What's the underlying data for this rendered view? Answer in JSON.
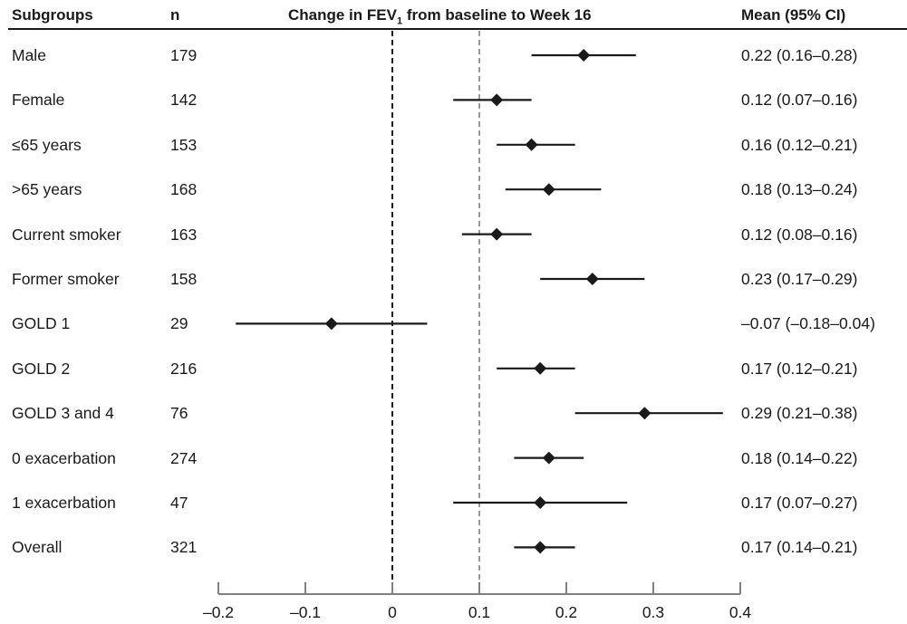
{
  "chart_data": {
    "type": "forest",
    "headers": {
      "subgroups": "Subgroups",
      "n": "n",
      "title_pre": "Change in FEV",
      "title_sub": "1",
      "title_post": " from baseline to Week 16",
      "ci": "Mean (95% CI)"
    },
    "rows": [
      {
        "label": "Male",
        "n": "179",
        "mean": 0.22,
        "lower": 0.16,
        "upper": 0.28,
        "ci_text": "0.22 (0.16–0.28)"
      },
      {
        "label": "Female",
        "n": "142",
        "mean": 0.12,
        "lower": 0.07,
        "upper": 0.16,
        "ci_text": "0.12 (0.07–0.16)"
      },
      {
        "label": "≤65 years",
        "n": "153",
        "mean": 0.16,
        "lower": 0.12,
        "upper": 0.21,
        "ci_text": "0.16 (0.12–0.21)"
      },
      {
        "label": ">65 years",
        "n": "168",
        "mean": 0.18,
        "lower": 0.13,
        "upper": 0.24,
        "ci_text": "0.18 (0.13–0.24)"
      },
      {
        "label": "Current smoker",
        "n": "163",
        "mean": 0.12,
        "lower": 0.08,
        "upper": 0.16,
        "ci_text": "0.12 (0.08–0.16)"
      },
      {
        "label": "Former smoker",
        "n": "158",
        "mean": 0.23,
        "lower": 0.17,
        "upper": 0.29,
        "ci_text": "0.23 (0.17–0.29)"
      },
      {
        "label": "GOLD 1",
        "n": "29",
        "mean": -0.07,
        "lower": -0.18,
        "upper": 0.04,
        "ci_text": "–0.07 (–0.18–0.04)"
      },
      {
        "label": "GOLD 2",
        "n": "216",
        "mean": 0.17,
        "lower": 0.12,
        "upper": 0.21,
        "ci_text": "0.17 (0.12–0.21)"
      },
      {
        "label": "GOLD 3 and 4",
        "n": "76",
        "mean": 0.29,
        "lower": 0.21,
        "upper": 0.38,
        "ci_text": "0.29 (0.21–0.38)"
      },
      {
        "label": "0 exacerbation",
        "n": "274",
        "mean": 0.18,
        "lower": 0.14,
        "upper": 0.22,
        "ci_text": "0.18 (0.14–0.22)"
      },
      {
        "label": "1 exacerbation",
        "n": "47",
        "mean": 0.17,
        "lower": 0.07,
        "upper": 0.27,
        "ci_text": "0.17 (0.07–0.27)"
      },
      {
        "label": "Overall",
        "n": "321",
        "mean": 0.17,
        "lower": 0.14,
        "upper": 0.21,
        "ci_text": "0.17 (0.14–0.21)"
      }
    ],
    "xlim": [
      -0.2,
      0.4
    ],
    "xticks": [
      -0.2,
      -0.1,
      0,
      0.1,
      0.2,
      0.3,
      0.4
    ],
    "xtick_labels": [
      "–0.2",
      "–0.1",
      "0",
      "0.1",
      "0.2",
      "0.3",
      "0.4"
    ],
    "reference_lines": [
      {
        "x": 0,
        "style": "dashed",
        "color": "#1a1a1a"
      },
      {
        "x": 0.1,
        "style": "dashed",
        "color": "#999999"
      }
    ],
    "colors": {
      "marker": "#1a1a1a",
      "axis": "#808080"
    }
  }
}
